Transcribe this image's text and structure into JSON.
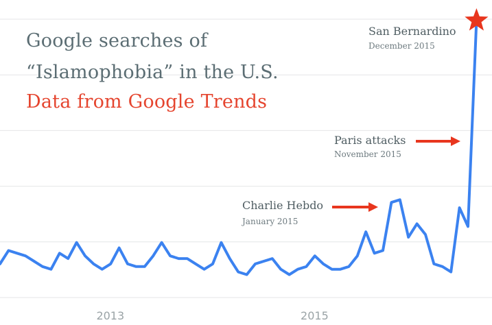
{
  "title_lines": [
    "Google searches of",
    "“Islamophobia” in the U.S."
  ],
  "subtitle": "Data from Google Trends",
  "colors": {
    "line": "#3b82f0",
    "arrow": "#e8361e",
    "grid": "#e4e6e7",
    "title": "#5b6d73",
    "subtitle": "#e5452f",
    "star": "#e8361e"
  },
  "annotations": [
    {
      "label": "Charlie Hebdo",
      "date": "January 2015"
    },
    {
      "label": "Paris attacks",
      "date": "November 2015"
    },
    {
      "label": "San Bernardino",
      "date": "December 2015"
    }
  ],
  "chart_data": {
    "type": "line",
    "title": "Google searches of “Islamophobia” in the U.S.",
    "subtitle": "Data from Google Trends",
    "x_tick_labels": [
      "2013",
      "2015"
    ],
    "x_tick_months": [
      12,
      36
    ],
    "xlim": [
      0,
      58
    ],
    "ylim": [
      0,
      100
    ],
    "grid": "horizontal",
    "series": [
      {
        "values": [
          9,
          14,
          13,
          12,
          10,
          8,
          7,
          13,
          11,
          17,
          12,
          9,
          7,
          9,
          15,
          9,
          8,
          8,
          12,
          17,
          12,
          11,
          11,
          9,
          7,
          9,
          17,
          11,
          6,
          5,
          9,
          10,
          11,
          7,
          5,
          7,
          8,
          12,
          9,
          7,
          7,
          8,
          12,
          21,
          13,
          14,
          32,
          33,
          19,
          24,
          20,
          9,
          8,
          6,
          30,
          23,
          100
        ]
      }
    ],
    "annotation_points": [
      {
        "label": "Charlie Hebdo",
        "x": 46,
        "y": 32
      },
      {
        "label": "Paris attacks",
        "x": 55.2,
        "y": 56
      },
      {
        "label": "San Bernardino",
        "x": 56,
        "y": 100
      }
    ]
  }
}
